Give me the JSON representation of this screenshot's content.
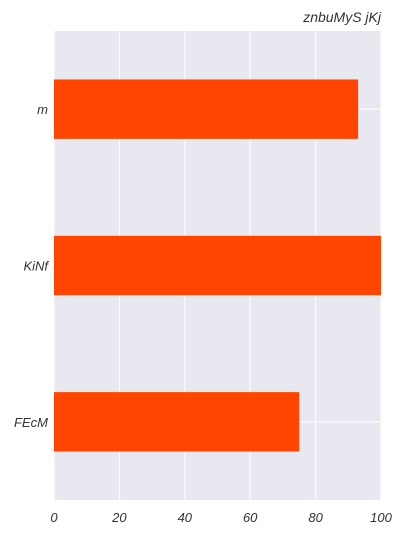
{
  "chart_data": {
    "type": "bar",
    "orientation": "horizontal",
    "title": "znbuMyS jKj",
    "title_align": "right",
    "xlabel": "",
    "ylabel": "",
    "categories": [
      "m",
      "KiNf",
      "FEcM"
    ],
    "values": [
      93,
      100,
      75
    ],
    "xlim": [
      0,
      100
    ],
    "xticks": [
      0,
      20,
      40,
      60,
      80,
      100
    ],
    "grid": true,
    "legend": "none",
    "colors": {
      "bar": "#ff4500",
      "plot_background": "#e8e8f0",
      "grid": "#ffffff"
    }
  }
}
